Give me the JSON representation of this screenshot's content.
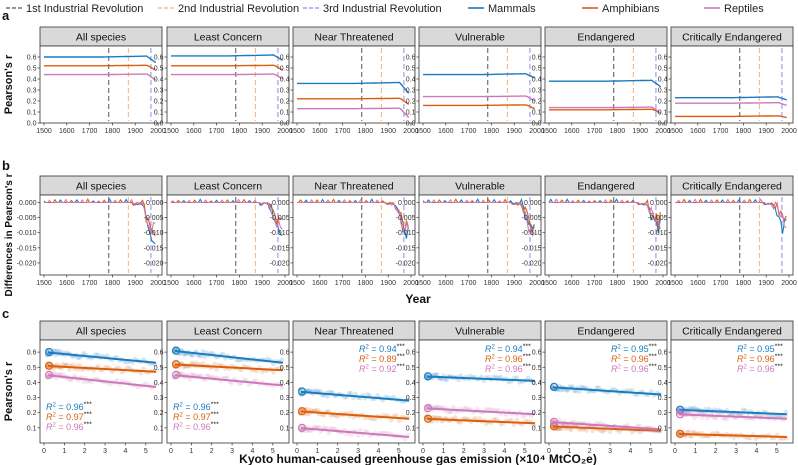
{
  "chart_data": {
    "type": "line",
    "legend": {
      "placement": "top",
      "entries": [
        {
          "label": "1st Industrial Revolution",
          "color": "#555555",
          "style": "dashed"
        },
        {
          "label": "2nd Industrial Revolution",
          "color": "#f4b183",
          "style": "dashed"
        },
        {
          "label": "3rd Industrial Revolution",
          "color": "#8c8cf0",
          "style": "dashed"
        },
        {
          "label": "Mammals",
          "color": "#1a7bbf",
          "style": "solid"
        },
        {
          "label": "Amphibians",
          "color": "#d95f0e",
          "style": "solid"
        },
        {
          "label": "Reptiles",
          "color": "#cc79b9",
          "style": "solid"
        }
      ]
    },
    "facets": [
      "All species",
      "Least Concern",
      "Near Threatened",
      "Vulnerable",
      "Endangered",
      "Critically Endangered"
    ],
    "revolutions": [
      1784,
      1870,
      1969
    ],
    "panels": [
      {
        "label": "a",
        "type": "line",
        "ylabel": "Pearson's r",
        "xlabel": "",
        "xlim": [
          1500,
          2000
        ],
        "xticks": [
          "1500",
          "1600",
          "1700",
          "1800",
          "1900",
          "2000"
        ],
        "ylim": [
          0,
          0.7
        ],
        "yticks": [
          "0.0",
          "0.1",
          "0.2",
          "0.3",
          "0.4",
          "0.5",
          "0.6"
        ],
        "series": [
          {
            "name": "Mammals",
            "values": [
              0.6,
              0.61,
              0.36,
              0.44,
              0.38,
              0.23
            ],
            "end_values": [
              0.55,
              0.57,
              0.27,
              0.41,
              0.33,
              0.21
            ]
          },
          {
            "name": "Amphibians",
            "values": [
              0.52,
              0.52,
              0.22,
              0.16,
              0.12,
              0.06
            ],
            "end_values": [
              0.48,
              0.48,
              0.17,
              0.13,
              0.09,
              0.05
            ]
          },
          {
            "name": "Reptiles",
            "values": [
              0.44,
              0.44,
              0.13,
              0.24,
              0.14,
              0.18
            ],
            "end_values": [
              0.39,
              0.4,
              0.05,
              0.2,
              0.09,
              0.16
            ]
          }
        ]
      },
      {
        "label": "b",
        "type": "line",
        "ylabel": "Differences in Pearson's r",
        "xlabel": "Year",
        "xlim": [
          1500,
          2000
        ],
        "xticks": [
          "1500",
          "1600",
          "1700",
          "1800",
          "1900",
          "2000"
        ],
        "ylim": [
          -0.024,
          0.0025
        ],
        "yticks": [
          "0.000",
          "-0.005",
          "-0.010",
          "-0.015",
          "-0.020"
        ],
        "series_names": [
          "Mammals",
          "Amphibians",
          "Reptiles"
        ],
        "min_values": [
          [
            -0.016,
            -0.014,
            -0.013
          ],
          [
            -0.013,
            -0.009,
            -0.011
          ],
          [
            -0.015,
            -0.012,
            -0.013
          ],
          [
            -0.013,
            -0.01,
            -0.015
          ],
          [
            -0.012,
            -0.008,
            -0.01
          ],
          [
            -0.012,
            -0.007,
            -0.008
          ]
        ]
      },
      {
        "label": "c",
        "type": "scatter",
        "ylabel": "Pearson's r",
        "xlabel": "Kyoto human-caused greenhouse gas emission (×10⁴ MtCO₂e)",
        "xlim": [
          0,
          5.6
        ],
        "xticks": [
          "0",
          "1",
          "2",
          "3",
          "4",
          "5"
        ],
        "ylim": [
          0,
          0.68
        ],
        "yticks": [
          "0.1",
          "0.2",
          "0.3",
          "0.4",
          "0.5",
          "0.6"
        ],
        "facets": [
          {
            "r2": [
              "0.96",
              "0.97",
              "0.96"
            ],
            "fit_start": [
              0.6,
              0.51,
              0.45
            ],
            "fit_end": [
              0.53,
              0.47,
              0.37
            ]
          },
          {
            "r2": [
              "0.96",
              "0.97",
              "0.96"
            ],
            "fit_start": [
              0.61,
              0.52,
              0.45
            ],
            "fit_end": [
              0.53,
              0.48,
              0.38
            ]
          },
          {
            "r2": [
              "0.94",
              "0.89",
              "0.92"
            ],
            "fit_start": [
              0.34,
              0.21,
              0.1
            ],
            "fit_end": [
              0.28,
              0.16,
              0.04
            ]
          },
          {
            "r2": [
              "0.94",
              "0.96",
              "0.96"
            ],
            "fit_start": [
              0.44,
              0.16,
              0.23
            ],
            "fit_end": [
              0.41,
              0.13,
              0.19
            ]
          },
          {
            "r2": [
              "0.95",
              "0.96",
              "0.96"
            ],
            "fit_start": [
              0.37,
              0.11,
              0.14
            ],
            "fit_end": [
              0.32,
              0.08,
              0.09
            ]
          },
          {
            "r2": [
              "0.95",
              "0.96",
              "0.96"
            ],
            "fit_start": [
              0.22,
              0.06,
              0.19
            ],
            "fit_end": [
              0.19,
              0.04,
              0.16
            ]
          }
        ]
      }
    ],
    "r2_label_prefix": "R",
    "r2_label_sup": "2",
    "r2_eq": " = ",
    "r2_stars": "***"
  }
}
